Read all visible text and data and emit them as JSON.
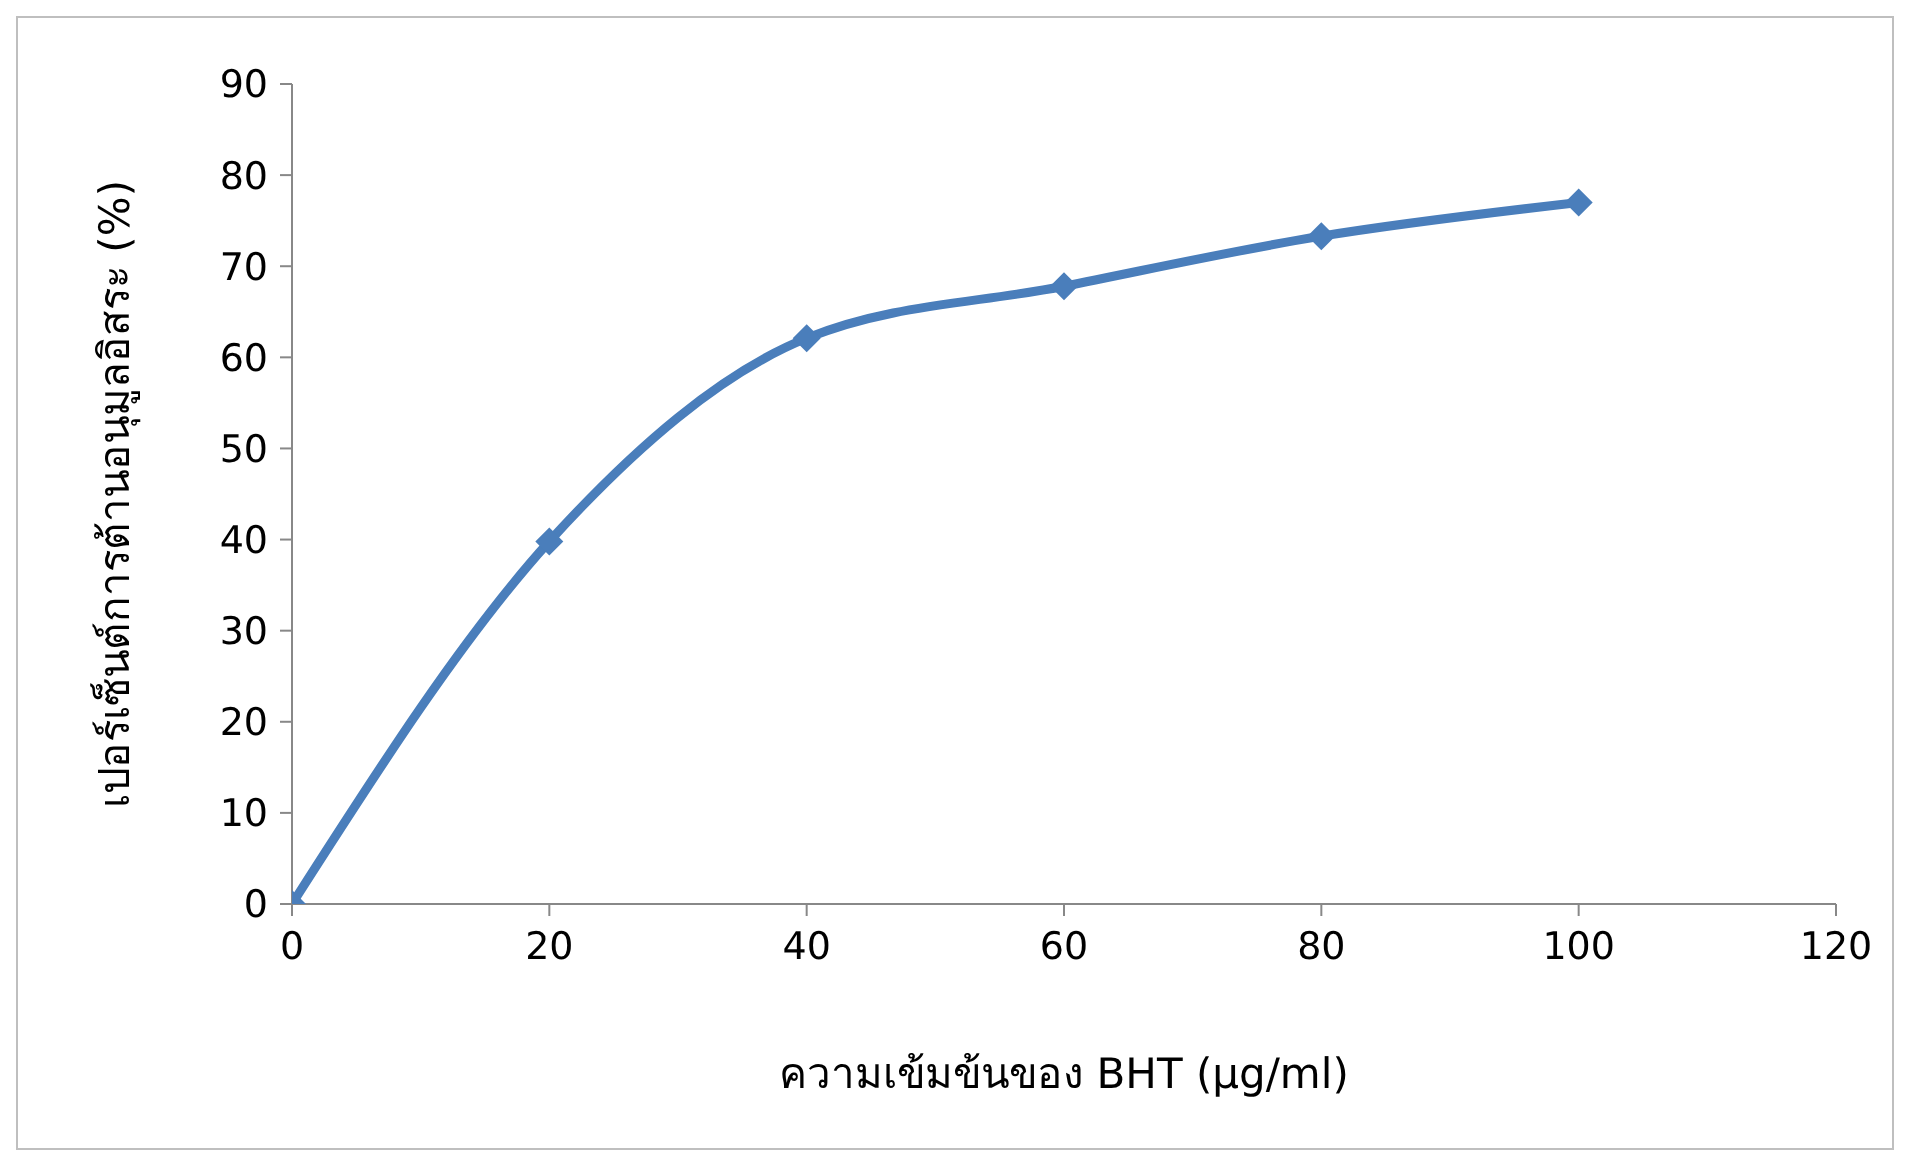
{
  "chart_data": {
    "type": "line",
    "xlabel": "ความเข้มข้นของ BHT (µg/ml)",
    "ylabel": "เปอร์เซ็นต์การต้านอนุมูลอิสระ (%)",
    "x": [
      0,
      20,
      40,
      60,
      80,
      100
    ],
    "series": [
      {
        "color": "#4a7ebb",
        "values": [
          0,
          39.8,
          62.1,
          67.8,
          73.3,
          77.0
        ]
      }
    ],
    "xlim": [
      0,
      120
    ],
    "xticks": [
      0,
      20,
      40,
      60,
      80,
      100,
      120
    ],
    "ylim": [
      0,
      90
    ],
    "yticks": [
      0,
      10,
      20,
      30,
      40,
      50,
      60,
      70,
      80,
      90
    ],
    "grid": false,
    "legend": false,
    "marker": "diamond",
    "line_style": "solid"
  }
}
